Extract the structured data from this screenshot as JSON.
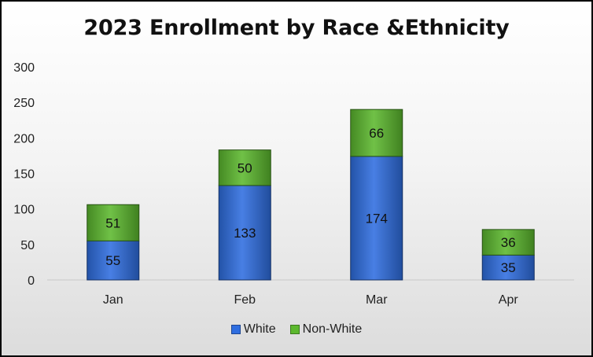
{
  "chart_data": {
    "type": "bar",
    "stacked": true,
    "title": "2023 Enrollment by Race &Ethnicity",
    "categories": [
      "Jan",
      "Feb",
      "Mar",
      "Apr"
    ],
    "series": [
      {
        "name": "White",
        "values": [
          55,
          133,
          174,
          35
        ],
        "color": "#2f6ee0"
      },
      {
        "name": "Non-White",
        "values": [
          51,
          50,
          66,
          36
        ],
        "color": "#5cb82e"
      }
    ],
    "ylim": [
      0,
      300
    ],
    "yticks": [
      0,
      50,
      100,
      150,
      200,
      250,
      300
    ],
    "grid": false,
    "legend": "bottom"
  }
}
